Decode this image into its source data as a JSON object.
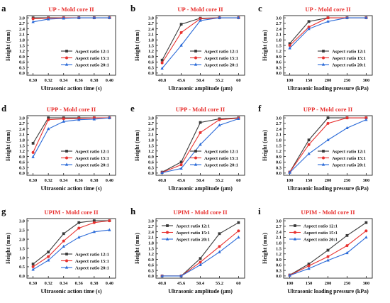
{
  "series_styles": [
    {
      "name": "Aspect ratio 12:1",
      "color": "#3a3a3a",
      "marker": "square"
    },
    {
      "name": "Aspect ratio 15:1",
      "color": "#e8312f",
      "marker": "circle"
    },
    {
      "name": "Aspect ratio 20:1",
      "color": "#2a6ad8",
      "marker": "triangle"
    }
  ],
  "chart_data": [
    {
      "letter": "a",
      "type": "line",
      "title": "UP - Mold core II",
      "xlabel": "Ultrasonic action time (s)",
      "ylabel": "Height (mm)",
      "x": [
        0.3,
        0.32,
        0.34,
        0.36,
        0.38,
        0.4
      ],
      "xticks": [
        "0.30",
        "0.32",
        "0.34",
        "0.36",
        "0.38",
        "0.40"
      ],
      "ylim": [
        0,
        3.0
      ],
      "yticks": [
        "0.0",
        "0.3",
        "0.6",
        "0.9",
        "1.2",
        "1.5",
        "1.8",
        "2.1",
        "2.4",
        "2.7",
        "3.0"
      ],
      "legend": "lower-right",
      "series": [
        {
          "name": "Aspect ratio 12:1",
          "values": [
            3.0,
            3.0,
            3.0,
            3.0,
            3.0,
            3.0
          ]
        },
        {
          "name": "Aspect ratio 15:1",
          "values": [
            2.95,
            2.98,
            3.0,
            3.0,
            3.0,
            3.0
          ]
        },
        {
          "name": "Aspect ratio 20:1",
          "values": [
            2.78,
            2.93,
            2.97,
            3.0,
            3.0,
            3.0
          ]
        }
      ]
    },
    {
      "letter": "b",
      "type": "line",
      "title": "UP - Mold core II",
      "xlabel": "Ultrasonic amplitude (μm)",
      "ylabel": "Height (mm)",
      "x": [
        40.8,
        45.6,
        50.4,
        55.2,
        60
      ],
      "xticks": [
        "40.8",
        "45.6",
        "50.4",
        "55.2",
        "60"
      ],
      "ylim": [
        0,
        3.0
      ],
      "yticks": [
        "0.0",
        "0.3",
        "0.6",
        "0.9",
        "1.2",
        "1.5",
        "1.8",
        "2.1",
        "2.4",
        "2.7",
        "3.0"
      ],
      "legend": "lower-right",
      "series": [
        {
          "name": "Aspect ratio 12:1",
          "values": [
            0.7,
            2.65,
            2.98,
            3.0,
            3.0
          ]
        },
        {
          "name": "Aspect ratio 15:1",
          "values": [
            0.55,
            2.2,
            2.95,
            3.0,
            3.0
          ]
        },
        {
          "name": "Aspect ratio 20:1",
          "values": [
            0.25,
            1.5,
            2.85,
            3.0,
            3.0
          ]
        }
      ]
    },
    {
      "letter": "c",
      "type": "line",
      "title": "UP - Mold core II",
      "xlabel": "Ultrasonic loading pressure (kPa)",
      "ylabel": "Height (mm)",
      "x": [
        100,
        150,
        200,
        250,
        300
      ],
      "xticks": [
        "100",
        "150",
        "200",
        "250",
        "300"
      ],
      "ylim": [
        0,
        3.0
      ],
      "yticks": [
        "0.0",
        "0.3",
        "0.6",
        "0.9",
        "1.2",
        "1.5",
        "1.8",
        "2.1",
        "2.4",
        "2.7",
        "3.0"
      ],
      "legend": "lower-right",
      "series": [
        {
          "name": "Aspect ratio 12:1",
          "values": [
            1.6,
            2.8,
            3.0,
            3.0,
            3.0
          ]
        },
        {
          "name": "Aspect ratio 15:1",
          "values": [
            1.5,
            2.5,
            3.0,
            3.0,
            3.0
          ]
        },
        {
          "name": "Aspect ratio 20:1",
          "values": [
            1.35,
            2.4,
            2.8,
            3.0,
            3.0
          ]
        }
      ]
    },
    {
      "letter": "d",
      "type": "line",
      "title": "UPP - Mold core II",
      "xlabel": "Ultrasonic action time (s)",
      "ylabel": "Height (mm)",
      "x": [
        0.3,
        0.32,
        0.34,
        0.36,
        0.38,
        0.4
      ],
      "xticks": [
        "0.30",
        "0.32",
        "0.34",
        "0.36",
        "0.38",
        "0.40"
      ],
      "ylim": [
        0,
        3.0
      ],
      "yticks": [
        "0.0",
        "0.3",
        "0.6",
        "0.9",
        "1.2",
        "1.5",
        "1.8",
        "2.1",
        "2.4",
        "2.7",
        "3.0"
      ],
      "legend": "lower-right",
      "series": [
        {
          "name": "Aspect ratio 12:1",
          "values": [
            1.62,
            3.0,
            3.0,
            3.0,
            3.0,
            3.0
          ]
        },
        {
          "name": "Aspect ratio 15:1",
          "values": [
            1.12,
            2.9,
            2.95,
            2.97,
            3.0,
            3.0
          ]
        },
        {
          "name": "Aspect ratio 20:1",
          "values": [
            0.88,
            2.4,
            2.8,
            2.9,
            2.93,
            3.0
          ]
        }
      ]
    },
    {
      "letter": "e",
      "type": "line",
      "title": "UPP - Mold core II",
      "xlabel": "Ultrasonic amplitude (μm)",
      "ylabel": "Height (mm)",
      "x": [
        40.8,
        45.6,
        50.4,
        55.2,
        60
      ],
      "xticks": [
        "40.8",
        "45.6",
        "50.4",
        "55.2",
        "60"
      ],
      "ylim": [
        0,
        3.0
      ],
      "yticks": [
        "0.0",
        "0.3",
        "0.6",
        "0.9",
        "1.2",
        "1.5",
        "1.8",
        "2.1",
        "2.4",
        "2.7",
        "3.0"
      ],
      "legend": "lower-right",
      "series": [
        {
          "name": "Aspect ratio 12:1",
          "values": [
            0.05,
            0.6,
            2.75,
            2.95,
            3.0
          ]
        },
        {
          "name": "Aspect ratio 15:1",
          "values": [
            0.03,
            0.45,
            2.2,
            2.9,
            2.98
          ]
        },
        {
          "name": "Aspect ratio 20:1",
          "values": [
            0.02,
            0.25,
            1.55,
            2.6,
            2.95
          ]
        }
      ]
    },
    {
      "letter": "f",
      "type": "line",
      "title": "UPP - Mold core II",
      "xlabel": "Ultrasonic loading pressure (kPa)",
      "ylabel": "Height (mm)",
      "x": [
        100,
        150,
        200,
        250,
        300
      ],
      "xticks": [
        "100",
        "150",
        "200",
        "250",
        "300"
      ],
      "ylim": [
        0,
        3.0
      ],
      "yticks": [
        "0.0",
        "0.3",
        "0.6",
        "0.9",
        "1.2",
        "1.5",
        "1.8",
        "2.1",
        "2.4",
        "2.7",
        "3.0"
      ],
      "legend": "lower-right",
      "series": [
        {
          "name": "Aspect ratio 12:1",
          "values": [
            0.05,
            1.8,
            3.0,
            3.0,
            3.0
          ]
        },
        {
          "name": "Aspect ratio 15:1",
          "values": [
            0.05,
            1.55,
            2.7,
            3.0,
            3.0
          ]
        },
        {
          "name": "Aspect ratio 20:1",
          "values": [
            0.03,
            1.05,
            1.8,
            2.45,
            2.9
          ]
        }
      ]
    },
    {
      "letter": "g",
      "type": "line",
      "title": "UPIM - Mold core II",
      "xlabel": "Ultrasonic action time (s)",
      "ylabel": "Height (mm)",
      "x": [
        0.3,
        0.32,
        0.34,
        0.36,
        0.38,
        0.4
      ],
      "xticks": [
        "0.30",
        "0.32",
        "0.34",
        "0.36",
        "0.38",
        "0.40"
      ],
      "ylim": [
        0,
        3.0
      ],
      "yticks": [
        "0.0",
        "0.5",
        "1.0",
        "1.5",
        "2.0",
        "2.5",
        "3.0"
      ],
      "legend": "lower-right",
      "series": [
        {
          "name": "Aspect ratio 12:1",
          "values": [
            0.65,
            1.3,
            2.3,
            2.9,
            3.0,
            3.0
          ]
        },
        {
          "name": "Aspect ratio 15:1",
          "values": [
            0.5,
            1.05,
            1.9,
            2.6,
            2.9,
            3.0
          ]
        },
        {
          "name": "Aspect ratio 20:1",
          "values": [
            0.35,
            0.85,
            1.6,
            2.1,
            2.4,
            2.5
          ]
        }
      ]
    },
    {
      "letter": "h",
      "type": "line",
      "title": "UPIM - Mold core II",
      "xlabel": "Ultrasonic amplitude (μm)",
      "ylabel": "Height (mm)",
      "x": [
        40.8,
        45.6,
        50.4,
        55.2,
        60
      ],
      "xticks": [
        "40.8",
        "45.6",
        "50.4",
        "55.2",
        "60"
      ],
      "ylim": [
        0,
        3.0
      ],
      "yticks": [
        "0.0",
        "0.3",
        "0.6",
        "0.9",
        "1.2",
        "1.5",
        "1.8",
        "2.1",
        "2.4",
        "2.7",
        "3.0"
      ],
      "legend": "upper-left",
      "series": [
        {
          "name": "Aspect ratio 12:1",
          "values": [
            0.0,
            0.0,
            0.95,
            2.3,
            2.9
          ]
        },
        {
          "name": "Aspect ratio 15:1",
          "values": [
            0.0,
            0.0,
            0.75,
            1.6,
            2.45
          ]
        },
        {
          "name": "Aspect ratio 20:1",
          "values": [
            0.0,
            0.0,
            0.6,
            1.3,
            2.1
          ]
        }
      ]
    },
    {
      "letter": "i",
      "type": "line",
      "title": "UPIM - Mold core II",
      "xlabel": "Ultrasonic loading pressure (kPa)",
      "ylabel": "Height (mm)",
      "x": [
        100,
        150,
        200,
        250,
        300
      ],
      "xticks": [
        "100",
        "150",
        "200",
        "250",
        "300"
      ],
      "ylim": [
        0,
        3.0
      ],
      "yticks": [
        "0.0",
        "0.3",
        "0.6",
        "0.9",
        "1.2",
        "1.5",
        "1.8",
        "2.1",
        "2.4",
        "2.7",
        "3.0"
      ],
      "legend": "upper-left",
      "series": [
        {
          "name": "Aspect ratio 12:1",
          "values": [
            0.05,
            0.65,
            1.4,
            2.2,
            2.9
          ]
        },
        {
          "name": "Aspect ratio 15:1",
          "values": [
            0.04,
            0.55,
            1.05,
            1.65,
            2.45
          ]
        },
        {
          "name": "Aspect ratio 20:1",
          "values": [
            0.03,
            0.4,
            0.85,
            1.25,
            2.1
          ]
        }
      ]
    }
  ]
}
